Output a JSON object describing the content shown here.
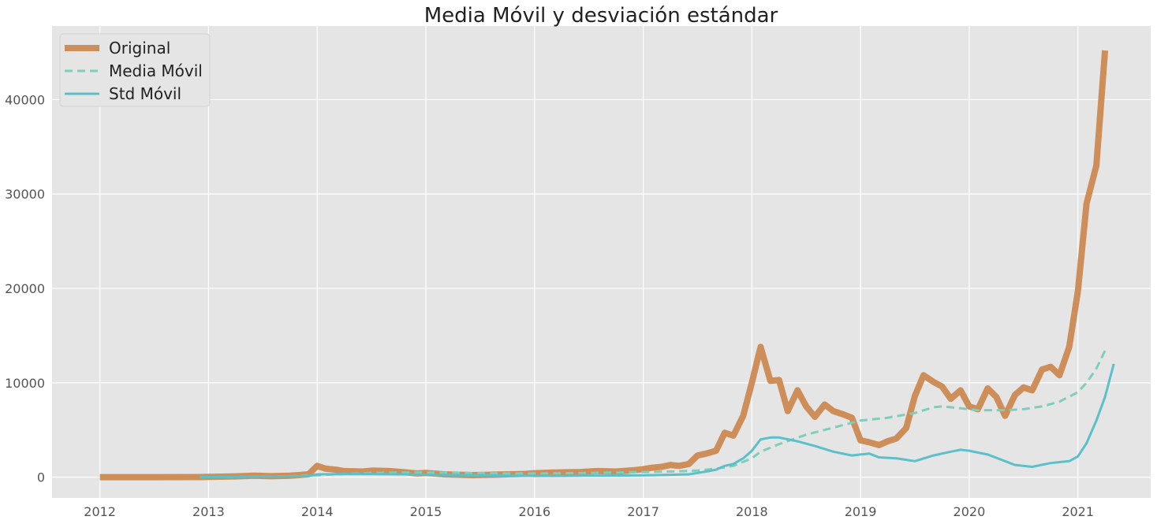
{
  "chart_data": {
    "type": "line",
    "title": "Media Móvil y desviación estándar",
    "xlabel": "",
    "ylabel": "",
    "xlim": [
      2011.56,
      2021.67
    ],
    "ylim": [
      -2200,
      47800
    ],
    "x_ticks": [
      2012,
      2013,
      2014,
      2015,
      2016,
      2017,
      2018,
      2019,
      2020,
      2021
    ],
    "x_tick_labels": [
      "2012",
      "2013",
      "2014",
      "2015",
      "2016",
      "2017",
      "2018",
      "2019",
      "2020",
      "2021"
    ],
    "y_ticks": [
      0,
      10000,
      20000,
      30000,
      40000
    ],
    "y_tick_labels": [
      "0",
      "10000",
      "20000",
      "30000",
      "40000"
    ],
    "grid": true,
    "legend_position": "top-left",
    "series": [
      {
        "name": "Original",
        "color": "#CD8E5A",
        "style": "solid-thick",
        "points": [
          [
            2012.0,
            5
          ],
          [
            2012.5,
            7
          ],
          [
            2012.92,
            13
          ],
          [
            2013.25,
            90
          ],
          [
            2013.42,
            150
          ],
          [
            2013.58,
            100
          ],
          [
            2013.75,
            150
          ],
          [
            2013.92,
            300
          ],
          [
            2014.0,
            1200
          ],
          [
            2014.08,
            900
          ],
          [
            2014.17,
            800
          ],
          [
            2014.25,
            650
          ],
          [
            2014.42,
            600
          ],
          [
            2014.5,
            700
          ],
          [
            2014.67,
            650
          ],
          [
            2014.83,
            500
          ],
          [
            2014.92,
            400
          ],
          [
            2015.0,
            450
          ],
          [
            2015.17,
            300
          ],
          [
            2015.42,
            220
          ],
          [
            2015.58,
            250
          ],
          [
            2015.75,
            300
          ],
          [
            2015.92,
            350
          ],
          [
            2016.0,
            420
          ],
          [
            2016.17,
            500
          ],
          [
            2016.42,
            550
          ],
          [
            2016.58,
            650
          ],
          [
            2016.75,
            600
          ],
          [
            2016.92,
            750
          ],
          [
            2017.0,
            850
          ],
          [
            2017.08,
            1000
          ],
          [
            2017.17,
            1100
          ],
          [
            2017.25,
            1300
          ],
          [
            2017.33,
            1200
          ],
          [
            2017.42,
            1400
          ],
          [
            2017.5,
            2300
          ],
          [
            2017.58,
            2500
          ],
          [
            2017.67,
            2800
          ],
          [
            2017.75,
            4700
          ],
          [
            2017.83,
            4400
          ],
          [
            2017.92,
            6500
          ],
          [
            2018.0,
            10000
          ],
          [
            2018.08,
            13800
          ],
          [
            2018.17,
            10200
          ],
          [
            2018.25,
            10300
          ],
          [
            2018.33,
            7000
          ],
          [
            2018.42,
            9200
          ],
          [
            2018.5,
            7500
          ],
          [
            2018.58,
            6400
          ],
          [
            2018.67,
            7700
          ],
          [
            2018.75,
            7000
          ],
          [
            2018.83,
            6700
          ],
          [
            2018.92,
            6300
          ],
          [
            2019.0,
            3900
          ],
          [
            2019.08,
            3700
          ],
          [
            2019.17,
            3400
          ],
          [
            2019.25,
            3800
          ],
          [
            2019.33,
            4100
          ],
          [
            2019.42,
            5200
          ],
          [
            2019.5,
            8600
          ],
          [
            2019.58,
            10800
          ],
          [
            2019.67,
            10100
          ],
          [
            2019.75,
            9600
          ],
          [
            2019.83,
            8300
          ],
          [
            2019.92,
            9200
          ],
          [
            2020.0,
            7500
          ],
          [
            2020.08,
            7200
          ],
          [
            2020.17,
            9400
          ],
          [
            2020.25,
            8500
          ],
          [
            2020.33,
            6500
          ],
          [
            2020.42,
            8700
          ],
          [
            2020.5,
            9500
          ],
          [
            2020.58,
            9200
          ],
          [
            2020.67,
            11400
          ],
          [
            2020.75,
            11700
          ],
          [
            2020.83,
            10800
          ],
          [
            2020.92,
            13800
          ],
          [
            2021.0,
            19700
          ],
          [
            2021.08,
            29000
          ],
          [
            2021.17,
            33000
          ],
          [
            2021.25,
            45200
          ]
        ]
      },
      {
        "name": "Media Móvil",
        "color": "#7FCDBB",
        "style": "dashed",
        "points": [
          [
            2012.92,
            5
          ],
          [
            2013.25,
            30
          ],
          [
            2013.5,
            70
          ],
          [
            2013.75,
            100
          ],
          [
            2014.0,
            200
          ],
          [
            2014.25,
            350
          ],
          [
            2014.5,
            450
          ],
          [
            2014.75,
            500
          ],
          [
            2015.0,
            500
          ],
          [
            2015.25,
            480
          ],
          [
            2015.5,
            430
          ],
          [
            2015.75,
            400
          ],
          [
            2016.0,
            400
          ],
          [
            2016.25,
            420
          ],
          [
            2016.5,
            450
          ],
          [
            2016.75,
            500
          ],
          [
            2017.0,
            550
          ],
          [
            2017.25,
            600
          ],
          [
            2017.5,
            700
          ],
          [
            2017.67,
            900
          ],
          [
            2017.83,
            1200
          ],
          [
            2018.0,
            2000
          ],
          [
            2018.08,
            2700
          ],
          [
            2018.25,
            3500
          ],
          [
            2018.5,
            4500
          ],
          [
            2018.67,
            5000
          ],
          [
            2018.83,
            5500
          ],
          [
            2019.0,
            6000
          ],
          [
            2019.25,
            6300
          ],
          [
            2019.5,
            6800
          ],
          [
            2019.67,
            7400
          ],
          [
            2019.75,
            7500
          ],
          [
            2019.92,
            7300
          ],
          [
            2020.08,
            7100
          ],
          [
            2020.33,
            7100
          ],
          [
            2020.5,
            7200
          ],
          [
            2020.67,
            7500
          ],
          [
            2020.83,
            8000
          ],
          [
            2021.0,
            9000
          ],
          [
            2021.08,
            10000
          ],
          [
            2021.17,
            11500
          ],
          [
            2021.25,
            13400
          ]
        ]
      },
      {
        "name": "Std Móvil",
        "color": "#5BC0CA",
        "style": "solid",
        "points": [
          [
            2012.92,
            3
          ],
          [
            2013.25,
            40
          ],
          [
            2013.5,
            80
          ],
          [
            2013.75,
            90
          ],
          [
            2013.92,
            100
          ],
          [
            2014.0,
            300
          ],
          [
            2014.25,
            330
          ],
          [
            2014.5,
            320
          ],
          [
            2014.75,
            300
          ],
          [
            2015.0,
            250
          ],
          [
            2015.25,
            200
          ],
          [
            2015.5,
            200
          ],
          [
            2015.75,
            150
          ],
          [
            2016.0,
            130
          ],
          [
            2016.25,
            130
          ],
          [
            2016.5,
            150
          ],
          [
            2016.75,
            170
          ],
          [
            2017.0,
            200
          ],
          [
            2017.25,
            250
          ],
          [
            2017.42,
            300
          ],
          [
            2017.58,
            600
          ],
          [
            2017.67,
            800
          ],
          [
            2017.75,
            1200
          ],
          [
            2017.83,
            1400
          ],
          [
            2017.92,
            2000
          ],
          [
            2018.0,
            2800
          ],
          [
            2018.08,
            4000
          ],
          [
            2018.17,
            4200
          ],
          [
            2018.25,
            4200
          ],
          [
            2018.42,
            3800
          ],
          [
            2018.58,
            3300
          ],
          [
            2018.75,
            2700
          ],
          [
            2018.92,
            2300
          ],
          [
            2019.0,
            2400
          ],
          [
            2019.08,
            2500
          ],
          [
            2019.17,
            2100
          ],
          [
            2019.33,
            2000
          ],
          [
            2019.5,
            1700
          ],
          [
            2019.67,
            2300
          ],
          [
            2019.83,
            2700
          ],
          [
            2019.92,
            2900
          ],
          [
            2020.0,
            2800
          ],
          [
            2020.17,
            2400
          ],
          [
            2020.33,
            1700
          ],
          [
            2020.42,
            1300
          ],
          [
            2020.58,
            1100
          ],
          [
            2020.75,
            1500
          ],
          [
            2020.92,
            1700
          ],
          [
            2021.0,
            2200
          ],
          [
            2021.08,
            3600
          ],
          [
            2021.17,
            6000
          ],
          [
            2021.25,
            8500
          ],
          [
            2021.33,
            12000
          ]
        ]
      }
    ]
  }
}
